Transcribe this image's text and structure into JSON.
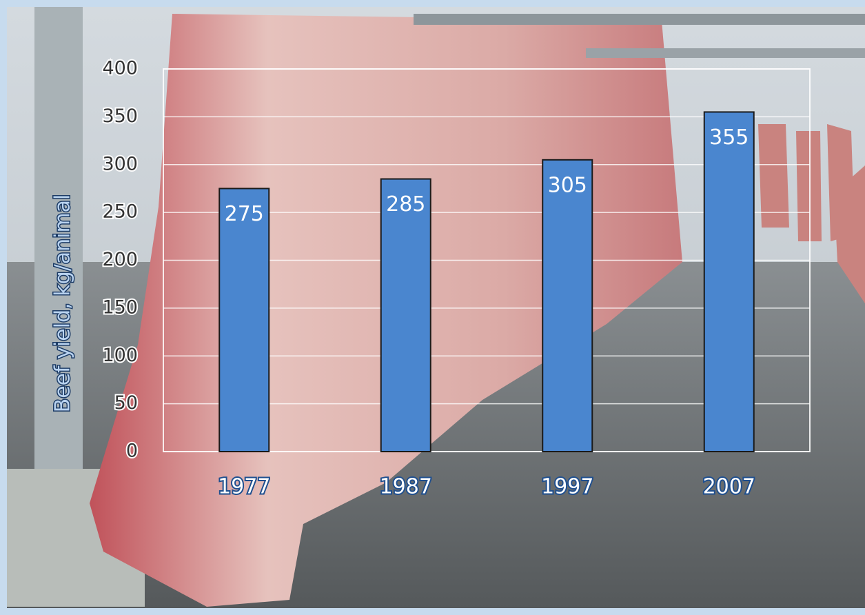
{
  "chart_data": {
    "type": "bar",
    "y_label": "Beef yield, kg/animal",
    "categories": [
      "1977",
      "1987",
      "1997",
      "2007"
    ],
    "values": [
      275,
      285,
      305,
      355
    ],
    "color": "#4a86cf",
    "ylim": [
      0,
      400
    ],
    "yticks": [
      0,
      50,
      100,
      150,
      200,
      250,
      300,
      350,
      400
    ],
    "grid": true
  }
}
